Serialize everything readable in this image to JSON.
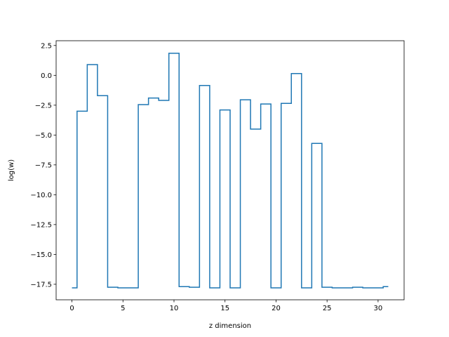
{
  "chart_data": {
    "type": "line",
    "drawstyle": "steps-mid",
    "xlabel": "z dimension",
    "ylabel": "log(w)",
    "xlim": [
      -1.55,
      32.55
    ],
    "ylim": [
      -18.8,
      2.9
    ],
    "x_ticks": [
      0,
      5,
      10,
      15,
      20,
      25,
      30
    ],
    "x_tick_labels": [
      "0",
      "5",
      "10",
      "15",
      "20",
      "25",
      "30"
    ],
    "y_ticks": [
      2.5,
      0.0,
      -2.5,
      -5.0,
      -7.5,
      -10.0,
      -12.5,
      -15.0,
      -17.5
    ],
    "y_tick_labels": [
      "2.5",
      "0.0",
      "−2.5",
      "−5.0",
      "−7.5",
      "−10.0",
      "−12.5",
      "−15.0",
      "−17.5"
    ],
    "grid": false,
    "series": [
      {
        "color": "#1f77b4",
        "x": [
          0,
          1,
          2,
          3,
          4,
          5,
          6,
          7,
          8,
          9,
          10,
          11,
          12,
          13,
          14,
          15,
          16,
          17,
          18,
          19,
          20,
          21,
          22,
          23,
          24,
          25,
          26,
          27,
          28,
          29,
          30,
          31
        ],
        "values": [
          -17.8,
          -3.0,
          0.9,
          -1.7,
          -17.75,
          -17.8,
          -17.8,
          -2.45,
          -1.9,
          -2.1,
          1.85,
          -17.7,
          -17.75,
          -0.85,
          -17.8,
          -2.9,
          -17.8,
          -2.05,
          -4.5,
          -2.4,
          -17.8,
          -2.35,
          0.15,
          -17.8,
          -5.7,
          -17.75,
          -17.8,
          -17.8,
          -17.75,
          -17.8,
          -17.8,
          -17.7
        ]
      }
    ]
  }
}
